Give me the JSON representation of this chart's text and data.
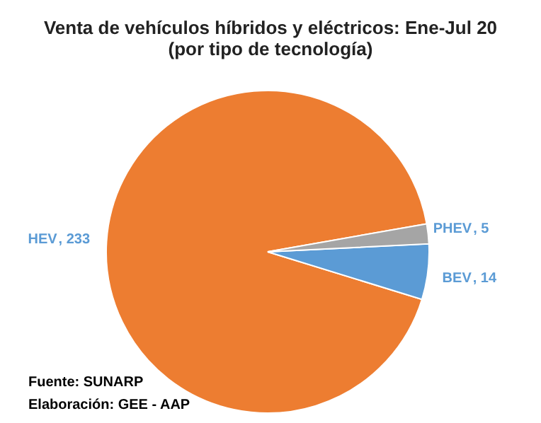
{
  "chart_data": {
    "type": "pie",
    "title": "Venta de vehículos híbridos y eléctricos: Ene-Jul 20\n(por tipo de tecnología)",
    "categories": [
      "HEV",
      "BEV",
      "PHEV"
    ],
    "values": [
      233,
      14,
      5
    ],
    "colors": [
      "#ed7d31",
      "#5b9bd5",
      "#a5a5a5"
    ],
    "value_labels": [
      ", 233",
      ", 14",
      ", 5"
    ],
    "annotations": [
      "Fuente: SUNARP",
      "Elaboración: GEE - AAP"
    ]
  }
}
